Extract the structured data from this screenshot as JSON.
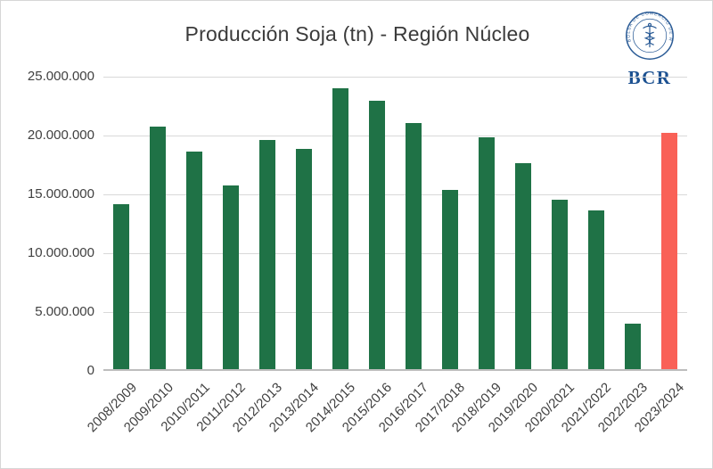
{
  "title": "Producción Soja (tn) - Región Núcleo",
  "logo": {
    "text": "BCR",
    "ring_text": "BOLSA DE COMERCIO DE ROSARIO",
    "color": "#2a5b96"
  },
  "chart_data": {
    "type": "bar",
    "title": "Producción Soja (tn) - Región Núcleo",
    "xlabel": "",
    "ylabel": "",
    "categories": [
      "2008/2009",
      "2009/2010",
      "2010/2011",
      "2011/2012",
      "2012/2013",
      "2013/2014",
      "2014/2015",
      "2015/2016",
      "2016/2017",
      "2017/2018",
      "2018/2019",
      "2019/2020",
      "2020/2021",
      "2021/2022",
      "2022/2023",
      "2023/2024"
    ],
    "values": [
      14000000,
      20600000,
      18500000,
      15600000,
      19500000,
      18700000,
      23900000,
      22800000,
      20900000,
      15200000,
      19700000,
      17500000,
      14400000,
      13500000,
      3900000,
      20100000
    ],
    "highlight_index": 15,
    "bar_colors": {
      "default": "#1f7246",
      "highlight": "#f96157"
    },
    "ylim": [
      0,
      25000000
    ],
    "ytick_interval": 5000000,
    "ytick_labels": [
      "0",
      "5.000.000",
      "10.000.000",
      "15.000.000",
      "20.000.000",
      "25.000.000"
    ],
    "grid": true,
    "legend": false
  }
}
